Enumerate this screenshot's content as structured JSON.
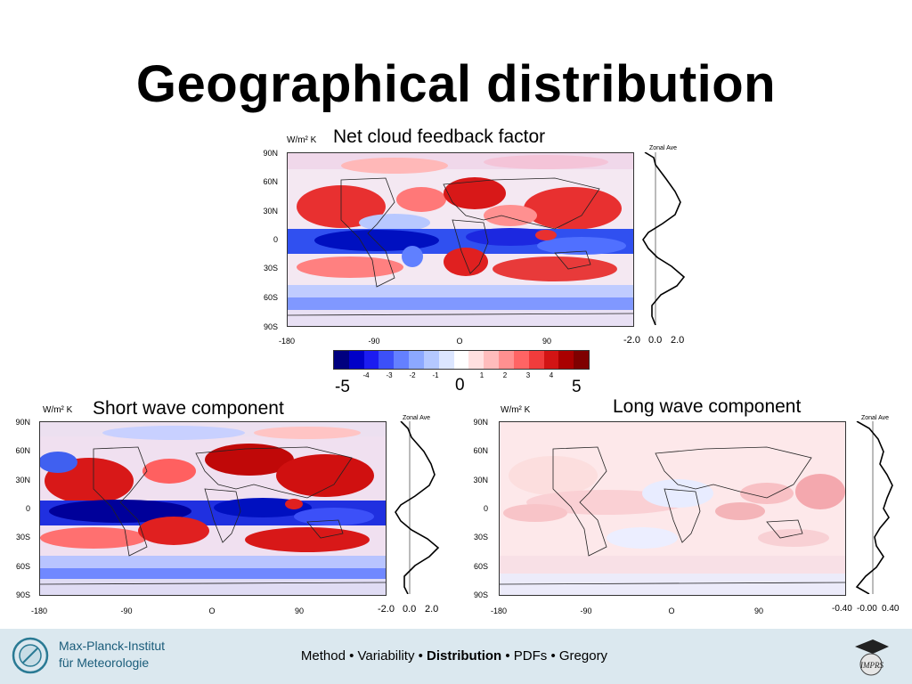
{
  "slide": {
    "title": "Geographical distribution",
    "unit": "W/m² K",
    "lat_ticks": [
      "90N",
      "60N",
      "30N",
      "0",
      "30S",
      "60S",
      "90S"
    ],
    "lon_ticks": [
      "-180",
      "-90",
      "O",
      "90"
    ]
  },
  "panels": {
    "net": {
      "title": "Net cloud feedback factor",
      "zonal_title": "Zonal Ave",
      "zonal_ticks": [
        "-2.0",
        "0.0",
        "2.0"
      ]
    },
    "short": {
      "title": "Short wave component",
      "zonal_title": "Zonal Ave",
      "zonal_ticks": [
        "-2.0",
        "0.0",
        "2.0"
      ]
    },
    "long": {
      "title": "Long wave component",
      "zonal_title": "Zonal Ave",
      "zonal_ticks": [
        "-0.40",
        "-0.00",
        "0.40"
      ]
    }
  },
  "colorbar": {
    "tick_labels": [
      "-4",
      "-3",
      "-2",
      "-1",
      "1",
      "2",
      "3",
      "4"
    ],
    "min_label": "-5",
    "mid_label": "0",
    "max_label": "5",
    "colors": [
      "#00007f",
      "#0000c8",
      "#1c1cf0",
      "#3c50f8",
      "#6480ff",
      "#8ca8ff",
      "#b4c8ff",
      "#dce6ff",
      "#ffffff",
      "#ffe0e0",
      "#ffbcbc",
      "#ff9090",
      "#ff6464",
      "#f03c3c",
      "#d21414",
      "#aa0000",
      "#7f0000"
    ]
  },
  "footer": {
    "institute_line1": "Max-Planck-Institut",
    "institute_line2": "für Meteorologie",
    "nav_before": "Method • Variability • ",
    "nav_current": "Distribution",
    "nav_after": " • PDFs • Gregory"
  }
}
